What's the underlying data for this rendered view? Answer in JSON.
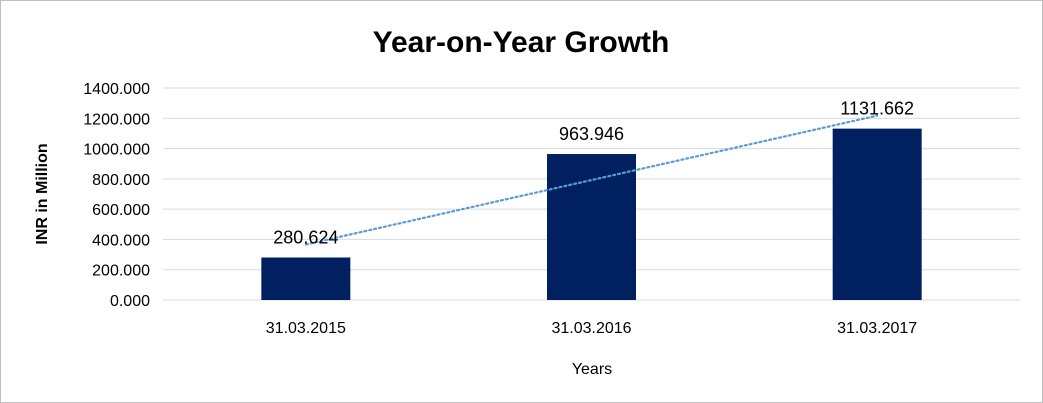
{
  "chart_data": {
    "type": "bar",
    "title": "Year-on-Year Growth",
    "xlabel": "Years",
    "ylabel": "INR in Million",
    "categories": [
      "31.03.2015",
      "31.03.2016",
      "31.03.2017"
    ],
    "values": [
      280.624,
      963.946,
      1131.662
    ],
    "data_labels": [
      "280.624",
      "963.946",
      "1131.662"
    ],
    "ylim": [
      0,
      1400
    ],
    "yticks": [
      0,
      200,
      400,
      600,
      800,
      1000,
      1200,
      1400
    ],
    "ytick_labels": [
      "0.000",
      "200.000",
      "400.000",
      "600.000",
      "800.000",
      "1000.000",
      "1200.000",
      "1400.000"
    ],
    "grid": true,
    "legend": "none",
    "trendline": {
      "type": "linear",
      "style": "dotted"
    },
    "colors": {
      "bar": "#002060",
      "trendline": "#5b9bd5",
      "grid": "#d9d9d9",
      "frame": "#bfbfbf"
    }
  }
}
